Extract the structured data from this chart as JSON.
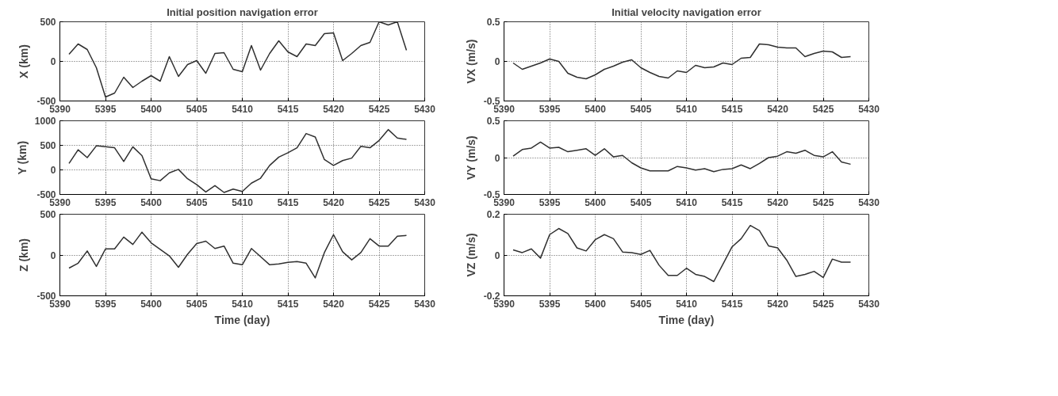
{
  "chart_data": [
    {
      "type": "line",
      "title": "Initial position navigation error",
      "ylabel": "X (km)",
      "x": [
        5391,
        5392,
        5393,
        5394,
        5395,
        5396,
        5397,
        5398,
        5399,
        5400,
        5401,
        5402,
        5403,
        5404,
        5405,
        5406,
        5407,
        5408,
        5409,
        5410,
        5411,
        5412,
        5413,
        5414,
        5415,
        5416,
        5417,
        5418,
        5419,
        5420,
        5421,
        5422,
        5423,
        5424,
        5425,
        5426,
        5427,
        5428
      ],
      "series": [
        {
          "color": "#303030",
          "values": [
            90,
            220,
            150,
            -80,
            -450,
            -400,
            -200,
            -330,
            -250,
            -180,
            -250,
            60,
            -190,
            -40,
            10,
            -150,
            100,
            110,
            -100,
            -130,
            200,
            -110,
            100,
            260,
            120,
            60,
            220,
            200,
            350,
            360,
            10,
            100,
            200,
            240,
            500,
            460,
            500,
            140
          ]
        }
      ],
      "xlim": [
        5390,
        5430
      ],
      "xticks": [
        5390,
        5395,
        5400,
        5405,
        5410,
        5415,
        5420,
        5425,
        5430
      ],
      "ylim": [
        -500,
        500
      ],
      "yticks": [
        -500,
        0,
        500
      ],
      "grid": true
    },
    {
      "type": "line",
      "title": "Initial velocity navigation error",
      "ylabel": "VX (m/s)",
      "x": [
        5391,
        5392,
        5393,
        5394,
        5395,
        5396,
        5397,
        5398,
        5399,
        5400,
        5401,
        5402,
        5403,
        5404,
        5405,
        5406,
        5407,
        5408,
        5409,
        5410,
        5411,
        5412,
        5413,
        5414,
        5415,
        5416,
        5417,
        5418,
        5419,
        5420,
        5421,
        5422,
        5423,
        5424,
        5425,
        5426,
        5427,
        5428
      ],
      "series": [
        {
          "color": "#303030",
          "values": [
            -0.02,
            -0.1,
            -0.06,
            -0.02,
            0.03,
            0.0,
            -0.15,
            -0.2,
            -0.22,
            -0.17,
            -0.1,
            -0.06,
            -0.01,
            0.02,
            -0.08,
            -0.14,
            -0.19,
            -0.21,
            -0.12,
            -0.14,
            -0.05,
            -0.08,
            -0.07,
            -0.02,
            -0.04,
            0.04,
            0.05,
            0.22,
            0.21,
            0.18,
            0.17,
            0.17,
            0.06,
            0.1,
            0.13,
            0.12,
            0.05,
            0.06
          ]
        }
      ],
      "xlim": [
        5390,
        5430
      ],
      "xticks": [
        5390,
        5395,
        5400,
        5405,
        5410,
        5415,
        5420,
        5425,
        5430
      ],
      "ylim": [
        -0.5,
        0.5
      ],
      "yticks": [
        -0.5,
        0,
        0.5
      ],
      "grid": true
    },
    {
      "type": "line",
      "ylabel": "Y (km)",
      "x": [
        5391,
        5392,
        5393,
        5394,
        5395,
        5396,
        5397,
        5398,
        5399,
        5400,
        5401,
        5402,
        5403,
        5404,
        5405,
        5406,
        5407,
        5408,
        5409,
        5410,
        5411,
        5412,
        5413,
        5414,
        5415,
        5416,
        5417,
        5418,
        5419,
        5420,
        5421,
        5422,
        5423,
        5424,
        5425,
        5426,
        5427,
        5428
      ],
      "series": [
        {
          "color": "#303030",
          "values": [
            130,
            410,
            250,
            490,
            470,
            450,
            170,
            470,
            290,
            -180,
            -220,
            -60,
            10,
            -180,
            -300,
            -450,
            -320,
            -460,
            -390,
            -440,
            -270,
            -170,
            90,
            260,
            350,
            450,
            740,
            670,
            210,
            90,
            190,
            240,
            480,
            450,
            600,
            820,
            650,
            620
          ]
        }
      ],
      "xlim": [
        5390,
        5430
      ],
      "xticks": [
        5390,
        5395,
        5400,
        5405,
        5410,
        5415,
        5420,
        5425,
        5430
      ],
      "ylim": [
        -500,
        1000
      ],
      "yticks": [
        -500,
        0,
        500,
        1000
      ],
      "grid": true
    },
    {
      "type": "line",
      "ylabel": "VY (m/s)",
      "x": [
        5391,
        5392,
        5393,
        5394,
        5395,
        5396,
        5397,
        5398,
        5399,
        5400,
        5401,
        5402,
        5403,
        5404,
        5405,
        5406,
        5407,
        5408,
        5409,
        5410,
        5411,
        5412,
        5413,
        5414,
        5415,
        5416,
        5417,
        5418,
        5419,
        5420,
        5421,
        5422,
        5423,
        5424,
        5425,
        5426,
        5427,
        5428
      ],
      "series": [
        {
          "color": "#303030",
          "values": [
            0.02,
            0.11,
            0.13,
            0.21,
            0.13,
            0.14,
            0.08,
            0.1,
            0.12,
            0.03,
            0.12,
            0.01,
            0.03,
            -0.07,
            -0.14,
            -0.18,
            -0.18,
            -0.18,
            -0.12,
            -0.14,
            -0.17,
            -0.15,
            -0.19,
            -0.16,
            -0.15,
            -0.1,
            -0.15,
            -0.08,
            0.0,
            0.02,
            0.08,
            0.06,
            0.1,
            0.03,
            0.01,
            0.08,
            -0.06,
            -0.09
          ]
        }
      ],
      "xlim": [
        5390,
        5430
      ],
      "xticks": [
        5390,
        5395,
        5400,
        5405,
        5410,
        5415,
        5420,
        5425,
        5430
      ],
      "ylim": [
        -0.5,
        0.5
      ],
      "yticks": [
        -0.5,
        0,
        0.5
      ],
      "grid": true
    },
    {
      "type": "line",
      "xlabel": "Time (day)",
      "ylabel": "Z (km)",
      "x": [
        5391,
        5392,
        5393,
        5394,
        5395,
        5396,
        5397,
        5398,
        5399,
        5400,
        5401,
        5402,
        5403,
        5404,
        5405,
        5406,
        5407,
        5408,
        5409,
        5410,
        5411,
        5412,
        5413,
        5414,
        5415,
        5416,
        5417,
        5418,
        5419,
        5420,
        5421,
        5422,
        5423,
        5424,
        5425,
        5426,
        5427,
        5428
      ],
      "series": [
        {
          "color": "#303030",
          "values": [
            -160,
            -100,
            50,
            -140,
            75,
            75,
            220,
            130,
            280,
            150,
            70,
            -10,
            -150,
            10,
            140,
            170,
            80,
            110,
            -100,
            -120,
            80,
            -20,
            -120,
            -110,
            -90,
            -80,
            -100,
            -280,
            30,
            250,
            40,
            -60,
            30,
            200,
            110,
            110,
            230,
            240
          ]
        }
      ],
      "xlim": [
        5390,
        5430
      ],
      "xticks": [
        5390,
        5395,
        5400,
        5405,
        5410,
        5415,
        5420,
        5425,
        5430
      ],
      "ylim": [
        -500,
        500
      ],
      "yticks": [
        -500,
        0,
        500
      ],
      "grid": true
    },
    {
      "type": "line",
      "xlabel": "Time (day)",
      "ylabel": "VZ (m/s)",
      "x": [
        5391,
        5392,
        5393,
        5394,
        5395,
        5396,
        5397,
        5398,
        5399,
        5400,
        5401,
        5402,
        5403,
        5404,
        5405,
        5406,
        5407,
        5408,
        5409,
        5410,
        5411,
        5412,
        5413,
        5414,
        5415,
        5416,
        5417,
        5418,
        5419,
        5420,
        5421,
        5422,
        5423,
        5424,
        5425,
        5426,
        5427,
        5428
      ],
      "series": [
        {
          "color": "#303030",
          "values": [
            0.025,
            0.012,
            0.03,
            -0.015,
            0.1,
            0.13,
            0.105,
            0.035,
            0.02,
            0.075,
            0.1,
            0.08,
            0.015,
            0.012,
            0.003,
            0.023,
            -0.05,
            -0.1,
            -0.1,
            -0.065,
            -0.095,
            -0.105,
            -0.13,
            -0.045,
            0.04,
            0.08,
            0.145,
            0.12,
            0.045,
            0.035,
            -0.025,
            -0.105,
            -0.095,
            -0.08,
            -0.11,
            -0.02,
            -0.035,
            -0.035
          ]
        }
      ],
      "xlim": [
        5390,
        5430
      ],
      "xticks": [
        5390,
        5395,
        5400,
        5405,
        5410,
        5415,
        5420,
        5425,
        5430
      ],
      "ylim": [
        -0.2,
        0.2
      ],
      "yticks": [
        -0.2,
        0,
        0.2
      ],
      "grid": true
    }
  ]
}
